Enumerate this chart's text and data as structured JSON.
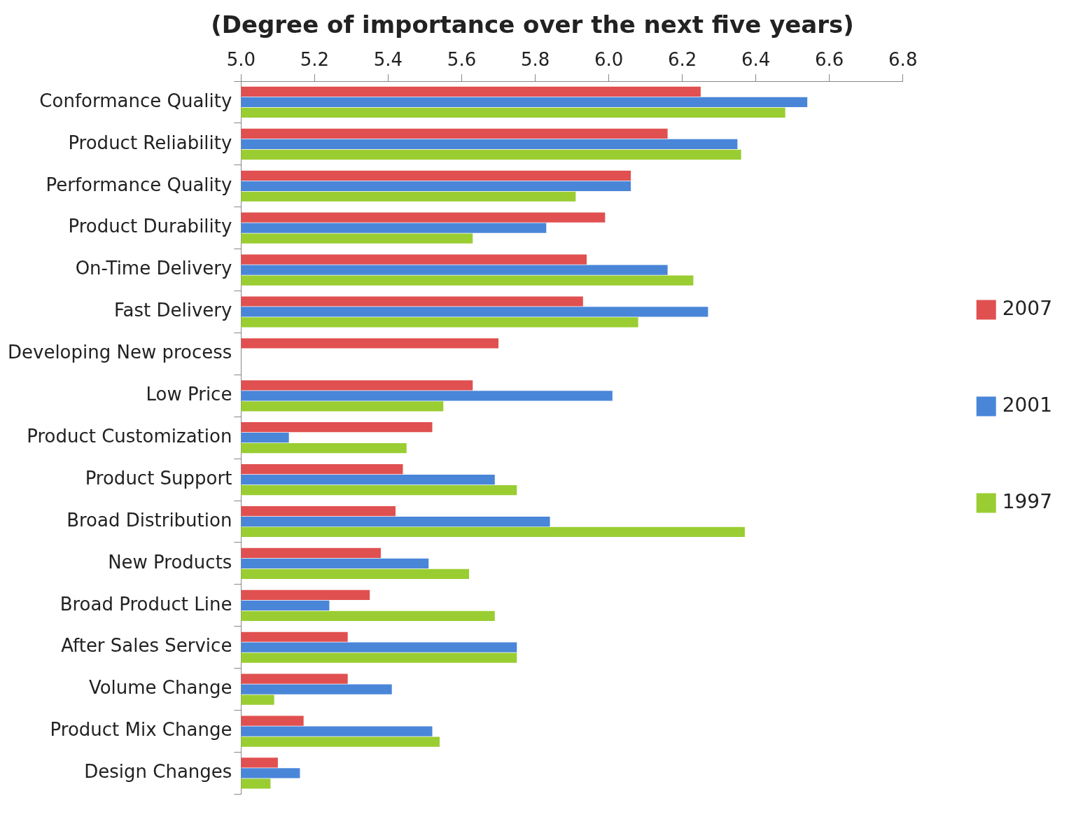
{
  "chart_data": {
    "type": "bar",
    "orientation": "horizontal",
    "title": "(Degree of importance over the next five years)",
    "categories": [
      "Conformance Quality",
      "Product Reliability",
      "Performance Quality",
      "Product Durability",
      "On-Time Delivery",
      "Fast Delivery",
      "Developing New process",
      "Low Price",
      "Product Customization",
      "Product Support",
      "Broad Distribution",
      "New Products",
      "Broad Product Line",
      "After Sales Service",
      "Volume Change",
      "Product Mix Change",
      "Design Changes"
    ],
    "series": [
      {
        "name": "2007",
        "color": "#e05050",
        "values": [
          6.25,
          6.16,
          6.06,
          5.99,
          5.94,
          5.93,
          5.7,
          5.63,
          5.52,
          5.44,
          5.42,
          5.38,
          5.35,
          5.29,
          5.29,
          5.17,
          5.1
        ]
      },
      {
        "name": "2001",
        "color": "#4a86d8",
        "values": [
          6.54,
          6.35,
          6.06,
          5.83,
          6.16,
          6.27,
          null,
          6.01,
          5.13,
          5.69,
          5.84,
          5.51,
          5.24,
          5.75,
          5.41,
          5.52,
          5.16
        ]
      },
      {
        "name": "1997",
        "color": "#9acd32",
        "values": [
          6.48,
          6.36,
          5.91,
          5.63,
          6.23,
          6.08,
          null,
          5.55,
          5.45,
          5.75,
          6.37,
          5.62,
          5.69,
          5.75,
          5.09,
          5.54,
          5.08
        ]
      }
    ],
    "xlim": [
      5.0,
      6.8
    ],
    "xticks": [
      {
        "value": 5.0,
        "label": "5.0"
      },
      {
        "value": 5.2,
        "label": "5.2"
      },
      {
        "value": 5.4,
        "label": "5.4"
      },
      {
        "value": 5.6,
        "label": "5.6"
      },
      {
        "value": 5.8,
        "label": "5.8"
      },
      {
        "value": 6.0,
        "label": "6.0"
      },
      {
        "value": 6.2,
        "label": "6.2"
      },
      {
        "value": 6.4,
        "label": "6.4"
      },
      {
        "value": 6.6,
        "label": "6.6"
      },
      {
        "value": 6.8,
        "label": "6.8"
      }
    ],
    "grid": false,
    "legend": "right"
  }
}
